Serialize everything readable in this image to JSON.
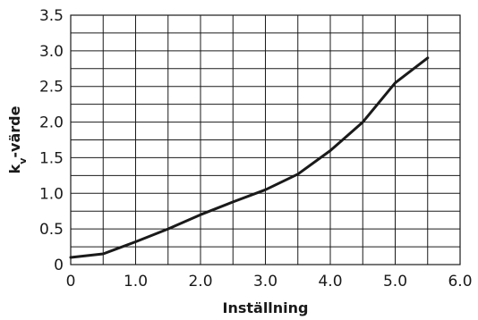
{
  "chart_data": {
    "type": "line",
    "title": "",
    "xlabel": "Inställning",
    "ylabel_main": "k",
    "ylabel_sub": "v",
    "ylabel_rest": "-värde",
    "xlim": [
      0,
      6.0
    ],
    "ylim": [
      0,
      3.5
    ],
    "x_ticks": [
      {
        "value": 0,
        "label": "0"
      },
      {
        "value": 1,
        "label": "1.0"
      },
      {
        "value": 2,
        "label": "2.0"
      },
      {
        "value": 3,
        "label": "3.0"
      },
      {
        "value": 4,
        "label": "4.0"
      },
      {
        "value": 5,
        "label": "5.0"
      },
      {
        "value": 6,
        "label": "6.0"
      }
    ],
    "y_ticks": [
      {
        "value": 0,
        "label": "0"
      },
      {
        "value": 0.5,
        "label": "0.5"
      },
      {
        "value": 1.0,
        "label": "1.0"
      },
      {
        "value": 1.5,
        "label": "1.5"
      },
      {
        "value": 2.0,
        "label": "2.0"
      },
      {
        "value": 2.5,
        "label": "2.5"
      },
      {
        "value": 3.0,
        "label": "3.0"
      },
      {
        "value": 3.5,
        "label": "3.5"
      }
    ],
    "grid": {
      "x_minor_step": 0.5,
      "y_step": 0.25
    },
    "series": [
      {
        "x": [
          0,
          0.5,
          1.0,
          1.5,
          2.0,
          2.5,
          3.0,
          3.5,
          4.0,
          4.5,
          5.0,
          5.5
        ],
        "y": [
          0.1,
          0.15,
          0.32,
          0.5,
          0.7,
          0.88,
          1.05,
          1.27,
          1.6,
          2.0,
          2.55,
          2.9
        ],
        "color": "#1a1a1a"
      }
    ]
  }
}
